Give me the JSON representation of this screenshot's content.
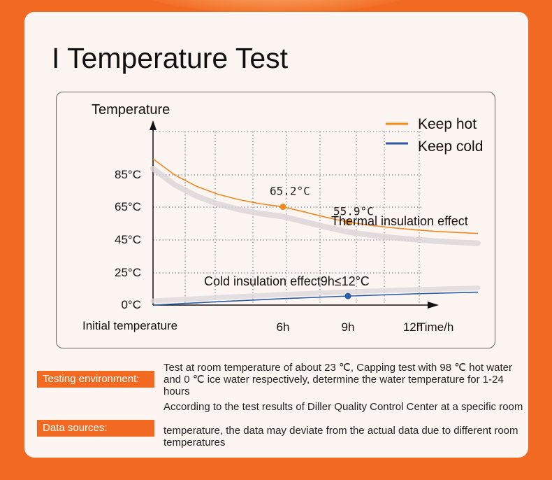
{
  "page": {
    "title": "I Temperature Test",
    "info": [
      {
        "label": "Testing environment:",
        "text": "Test at room temperature of about 23 ℃, Capping test with 98 ℃ hot water and 0 ℃ ice water respectively, determine the water temperature for 1-24 hours"
      },
      {
        "label": "Data sources:",
        "text_line1": "According to the test results of Diller Quality Control Center at a specific room",
        "text_line2": "temperature, the data may deviate from the actual data due to different room temperatures"
      }
    ]
  },
  "chart_data": {
    "type": "line",
    "ylabel": "Temperature",
    "xlabel": "Time/h",
    "x_origin_label": "Initial temperature",
    "y_ticks": [
      {
        "value": 0,
        "label": "0°C"
      },
      {
        "value": 25,
        "label": "25°C"
      },
      {
        "value": 45,
        "label": "45°C"
      },
      {
        "value": 65,
        "label": "65°C"
      },
      {
        "value": 85,
        "label": "85°C"
      }
    ],
    "x_ticks": [
      {
        "value": 6,
        "label": "6h"
      },
      {
        "value": 9,
        "label": "9h"
      },
      {
        "value": 12,
        "label": "12h"
      }
    ],
    "grid": true,
    "grid_style": "dotted",
    "legend_position": "top-right",
    "series": [
      {
        "name": "Keep hot",
        "color": "#ef8a1f",
        "x": [
          0,
          1,
          2,
          3,
          4,
          5,
          6,
          7,
          8,
          9,
          10,
          11,
          12,
          13,
          14,
          15
        ],
        "y": [
          95,
          85,
          78,
          73,
          69.5,
          67,
          65.2,
          62,
          58.8,
          55.9,
          54,
          52.5,
          51.3,
          50.3,
          49.6,
          49
        ],
        "markers": [
          {
            "x": 6,
            "y": 65.2,
            "label": "65.2°C"
          },
          {
            "x": 9,
            "y": 55.9,
            "label": "55.9°C"
          }
        ]
      },
      {
        "name": "Keep cold",
        "color": "#2a5ca8",
        "x": [
          0,
          3,
          6,
          9,
          12,
          15
        ],
        "y": [
          0,
          2.6,
          5,
          7,
          8.7,
          10
        ],
        "markers": [
          {
            "x": 9,
            "y": 7
          }
        ]
      }
    ],
    "annotations": [
      {
        "text": "Thermal insulation effect"
      },
      {
        "text": "Cold insulation effect9h≤12°C"
      }
    ]
  }
}
